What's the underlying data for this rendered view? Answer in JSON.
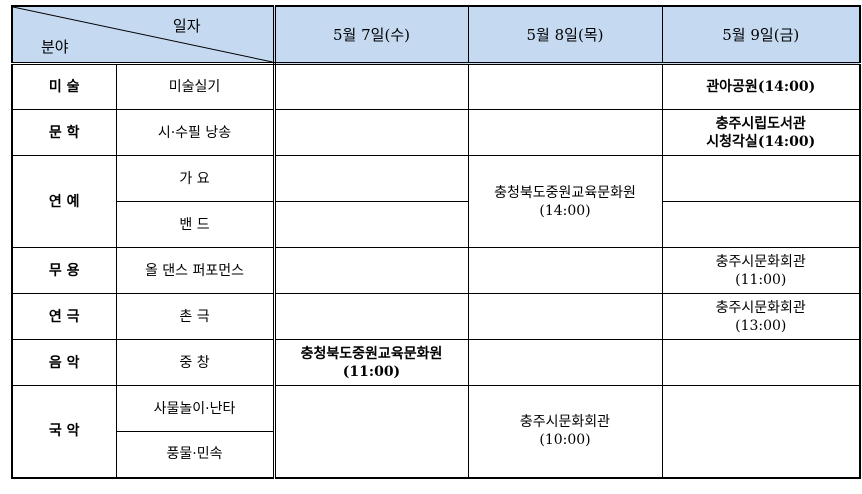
{
  "header": {
    "corner_top": "일자",
    "corner_bottom": "분야",
    "dates": [
      "5월  7일(수)",
      "5월  8일(목)",
      "5월  9일(금)"
    ]
  },
  "rows": {
    "art": {
      "field": "미 술",
      "sub": "미술실기",
      "d3": "관아공원(14:00)"
    },
    "lit": {
      "field": "문 학",
      "sub": "시·수필 낭송",
      "d3_line1": "충주시립도서관",
      "d3_line2": "시청각실(14:00)"
    },
    "ent": {
      "field": "연 예",
      "sub1": "가 요",
      "sub2": "밴 드",
      "d2_line1": "충청북도중원교육문화원",
      "d2_line2": "(14:00)"
    },
    "dance": {
      "field": "무 용",
      "sub": "올 댄스 퍼포먼스",
      "d3_line1": "충주시문화회관",
      "d3_line2": "(11:00)"
    },
    "drama": {
      "field": "연 극",
      "sub": "촌 극",
      "d3_line1": "충주시문화회관",
      "d3_line2": "(13:00)"
    },
    "music": {
      "field": "음 악",
      "sub": "중 창",
      "d1_line1": "충청북도중원교육문화원",
      "d1_line2": "(11:00)"
    },
    "trad": {
      "field": "국 악",
      "sub1": "사물놀이·난타",
      "sub2": "풍물·민속",
      "d2_line1": "충주시문화회관",
      "d2_line2": "(10:00)"
    }
  },
  "colors": {
    "header_bg": "#c5d9f1"
  }
}
